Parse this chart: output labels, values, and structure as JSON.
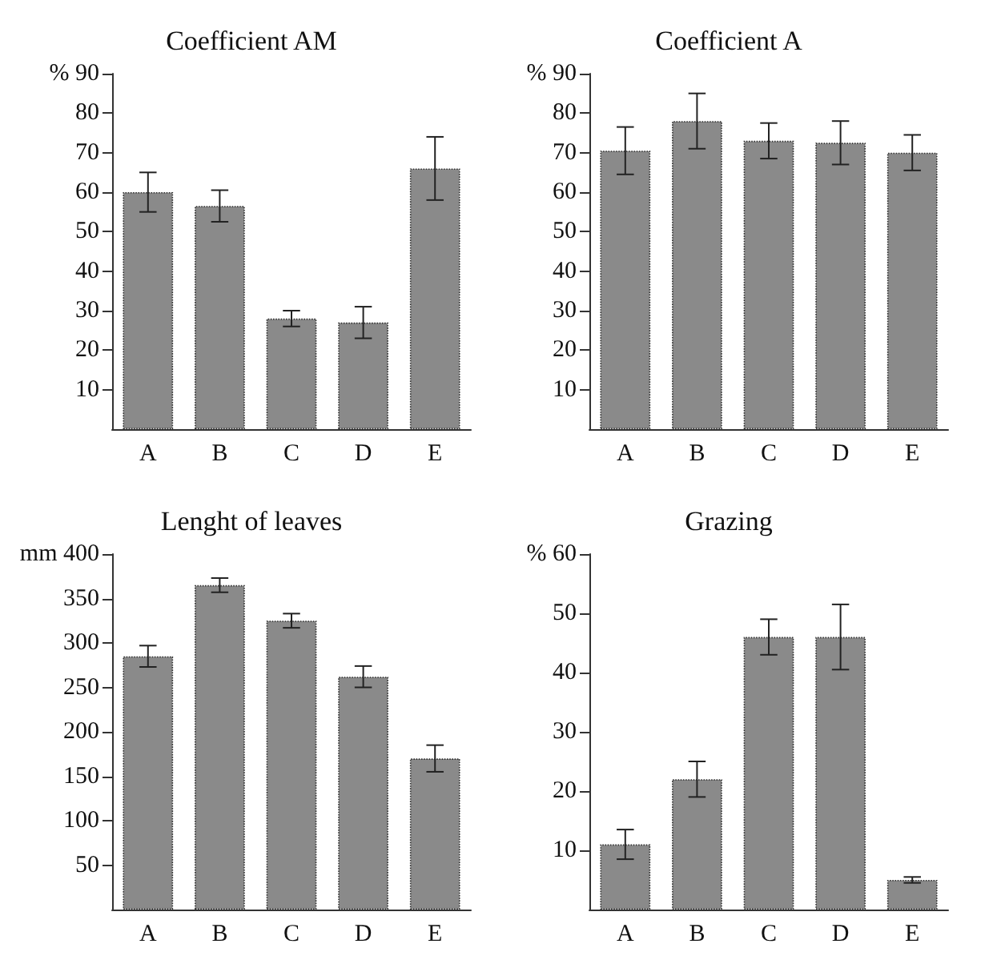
{
  "chart_data": [
    {
      "type": "bar",
      "title": "Coefficient AM",
      "categories": [
        "A",
        "B",
        "C",
        "D",
        "E"
      ],
      "values": [
        60,
        56.5,
        28,
        27,
        66
      ],
      "errors": [
        5,
        4,
        2,
        4,
        8
      ],
      "color": "#8a8a8a",
      "ylim": [
        0,
        90
      ],
      "yticks": [
        10,
        20,
        30,
        40,
        50,
        60,
        70,
        80,
        {
          "value": 90,
          "label": "% 90"
        }
      ],
      "grid": false
    },
    {
      "type": "bar",
      "title": "Coefficient A",
      "categories": [
        "A",
        "B",
        "C",
        "D",
        "E"
      ],
      "values": [
        70.5,
        78,
        73,
        72.5,
        70
      ],
      "errors": [
        6,
        7,
        4.5,
        5.5,
        4.5
      ],
      "color": "#8a8a8a",
      "ylim": [
        0,
        90
      ],
      "yticks": [
        10,
        20,
        30,
        40,
        50,
        60,
        70,
        80,
        {
          "value": 90,
          "label": "% 90"
        }
      ],
      "grid": false
    },
    {
      "type": "bar",
      "title": "Lenght of leaves",
      "categories": [
        "A",
        "B",
        "C",
        "D",
        "E"
      ],
      "values": [
        285,
        365,
        325,
        262,
        170
      ],
      "errors": [
        12,
        8,
        8,
        12,
        15
      ],
      "color": "#8a8a8a",
      "ylim": [
        0,
        400
      ],
      "yticks": [
        50,
        100,
        150,
        200,
        250,
        300,
        350,
        {
          "value": 400,
          "label": "mm 400"
        }
      ],
      "grid": false
    },
    {
      "type": "bar",
      "title": "Grazing",
      "categories": [
        "A",
        "B",
        "C",
        "D",
        "E"
      ],
      "values": [
        11,
        22,
        46,
        46,
        5
      ],
      "errors": [
        2.5,
        3,
        3,
        5.5,
        0.5
      ],
      "color": "#8a8a8a",
      "ylim": [
        0,
        60
      ],
      "yticks": [
        10,
        20,
        30,
        40,
        50,
        {
          "value": 60,
          "label": "% 60"
        }
      ],
      "grid": false
    }
  ]
}
